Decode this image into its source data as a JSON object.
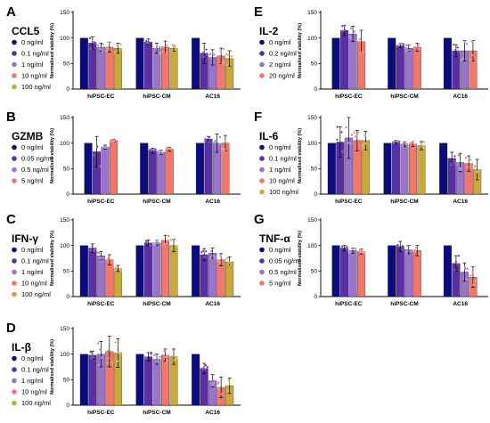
{
  "ylabel": "Normalised viability (%)",
  "yticks": [
    "0",
    "50",
    "100",
    "150"
  ],
  "categories": [
    "hiPSC-EC",
    "hiPSC-CM",
    "AC16"
  ],
  "colors": [
    "#0b0b80",
    "#5b2ea6",
    "#9a74c9",
    "#f0776a",
    "#c9a93c"
  ],
  "chart_data": [
    {
      "id": "A",
      "title": "CCL5",
      "type": "bar",
      "categories": [
        "hiPSC-EC",
        "hiPSC-CM",
        "AC16"
      ],
      "ylim": [
        0,
        150
      ],
      "ylabel": "Normalised viability (%)",
      "series": [
        {
          "name": "0 ng/ml",
          "values": [
            100,
            100,
            100
          ],
          "err": [
            0,
            0,
            0
          ]
        },
        {
          "name": "0.1 ng/ml",
          "values": [
            90,
            92,
            70
          ],
          "err": [
            12,
            6,
            20
          ]
        },
        {
          "name": "1 ng/ml",
          "values": [
            82,
            80,
            62
          ],
          "err": [
            8,
            10,
            15
          ]
        },
        {
          "name": "10 ng/ml",
          "values": [
            82,
            82,
            65
          ],
          "err": [
            10,
            12,
            15
          ]
        },
        {
          "name": "100 ng/ml",
          "values": [
            80,
            80,
            60
          ],
          "err": [
            10,
            6,
            15
          ]
        }
      ]
    },
    {
      "id": "B",
      "title": "GZMB",
      "type": "bar",
      "categories": [
        "hiPSC-EC",
        "hiPSC-CM",
        "AC16"
      ],
      "ylim": [
        0,
        150
      ],
      "ylabel": "Normalised viability (%)",
      "series": [
        {
          "name": "0 ng/ml",
          "values": [
            100,
            100,
            100
          ],
          "err": [
            0,
            0,
            0
          ]
        },
        {
          "name": "0.05 ng/ml",
          "values": [
            83,
            85,
            108
          ],
          "err": [
            30,
            5,
            5
          ]
        },
        {
          "name": "0.5 ng/ml",
          "values": [
            92,
            82,
            100
          ],
          "err": [
            4,
            4,
            18
          ]
        },
        {
          "name": "5 ng/ml",
          "values": [
            105,
            88,
            100
          ],
          "err": [
            2,
            4,
            15
          ]
        }
      ]
    },
    {
      "id": "C",
      "title": "IFN-γ",
      "type": "bar",
      "categories": [
        "hiPSC-EC",
        "hiPSC-CM",
        "AC16"
      ],
      "ylim": [
        0,
        150
      ],
      "ylabel": "Normalised viability (%)",
      "series": [
        {
          "name": "0 ng/ml",
          "values": [
            100,
            100,
            100
          ],
          "err": [
            0,
            0,
            0
          ]
        },
        {
          "name": "0.1 ng/ml",
          "values": [
            95,
            105,
            82
          ],
          "err": [
            8,
            6,
            12
          ]
        },
        {
          "name": "1 ng/ml",
          "values": [
            80,
            105,
            85
          ],
          "err": [
            8,
            5,
            10
          ]
        },
        {
          "name": "10 ng/ml",
          "values": [
            72,
            110,
            72
          ],
          "err": [
            10,
            10,
            12
          ]
        },
        {
          "name": "100 ng/ml",
          "values": [
            55,
            100,
            68
          ],
          "err": [
            6,
            12,
            10
          ]
        }
      ]
    },
    {
      "id": "D",
      "title": "IL-β",
      "type": "bar",
      "categories": [
        "hiPSC-EC",
        "hiPSC-CM",
        "AC16"
      ],
      "ylim": [
        0,
        150
      ],
      "ylabel": "Normalised viability (%)",
      "series": [
        {
          "name": "0 ng/ml",
          "values": [
            100,
            100,
            100
          ],
          "err": [
            0,
            0,
            0
          ]
        },
        {
          "name": "0.1 ng/ml",
          "values": [
            98,
            95,
            72
          ],
          "err": [
            8,
            8,
            10
          ]
        },
        {
          "name": "1 ng/ml",
          "values": [
            100,
            90,
            48
          ],
          "err": [
            25,
            10,
            12
          ]
        },
        {
          "name": "10 ng/ml",
          "values": [
            105,
            98,
            35
          ],
          "err": [
            30,
            12,
            20
          ]
        },
        {
          "name": "100 ng/ml",
          "values": [
            102,
            95,
            38
          ],
          "err": [
            28,
            15,
            15
          ]
        }
      ]
    },
    {
      "id": "E",
      "title": "IL-2",
      "type": "bar",
      "categories": [
        "hiPSC-EC",
        "hiPSC-CM",
        "AC16"
      ],
      "ylim": [
        0,
        150
      ],
      "ylabel": "Normalised viability (%)",
      "series": [
        {
          "name": "0 ng/ml",
          "values": [
            100,
            100,
            100
          ],
          "err": [
            0,
            0,
            0
          ]
        },
        {
          "name": "0.2 ng/ml",
          "values": [
            115,
            85,
            75
          ],
          "err": [
            10,
            4,
            12
          ]
        },
        {
          "name": "2 ng/ml",
          "values": [
            108,
            80,
            75
          ],
          "err": [
            15,
            6,
            20
          ]
        },
        {
          "name": "20 ng/ml",
          "values": [
            93,
            82,
            75
          ],
          "err": [
            22,
            8,
            20
          ]
        }
      ]
    },
    {
      "id": "F",
      "title": "IL-6",
      "type": "bar",
      "categories": [
        "hiPSC-EC",
        "hiPSC-CM",
        "AC16"
      ],
      "ylim": [
        0,
        150
      ],
      "ylabel": "Normalised viability (%)",
      "series": [
        {
          "name": "0 ng/ml",
          "values": [
            100,
            100,
            100
          ],
          "err": [
            0,
            0,
            0
          ]
        },
        {
          "name": "0.1 ng/ml",
          "values": [
            102,
            102,
            70
          ],
          "err": [
            30,
            3,
            12
          ]
        },
        {
          "name": "1 ng/ml",
          "values": [
            110,
            98,
            62
          ],
          "err": [
            40,
            5,
            18
          ]
        },
        {
          "name": "10 ng/ml",
          "values": [
            105,
            98,
            60
          ],
          "err": [
            20,
            5,
            15
          ]
        },
        {
          "name": "100 ng/ml",
          "values": [
            105,
            95,
            48
          ],
          "err": [
            18,
            8,
            20
          ]
        }
      ]
    },
    {
      "id": "G",
      "title": "TNF-α",
      "type": "bar",
      "categories": [
        "hiPSC-EC",
        "hiPSC-CM",
        "AC16"
      ],
      "ylim": [
        0,
        150
      ],
      "ylabel": "Normalised viability (%)",
      "series": [
        {
          "name": "0 ng/ml",
          "values": [
            100,
            100,
            100
          ],
          "err": [
            0,
            0,
            0
          ]
        },
        {
          "name": "0.05 ng/ml",
          "values": [
            95,
            98,
            65
          ],
          "err": [
            5,
            10,
            15
          ]
        },
        {
          "name": "0.5 ng/ml",
          "values": [
            90,
            92,
            48
          ],
          "err": [
            5,
            8,
            18
          ]
        },
        {
          "name": "5 ng/ml",
          "values": [
            88,
            90,
            38
          ],
          "err": [
            5,
            10,
            20
          ]
        }
      ]
    }
  ]
}
